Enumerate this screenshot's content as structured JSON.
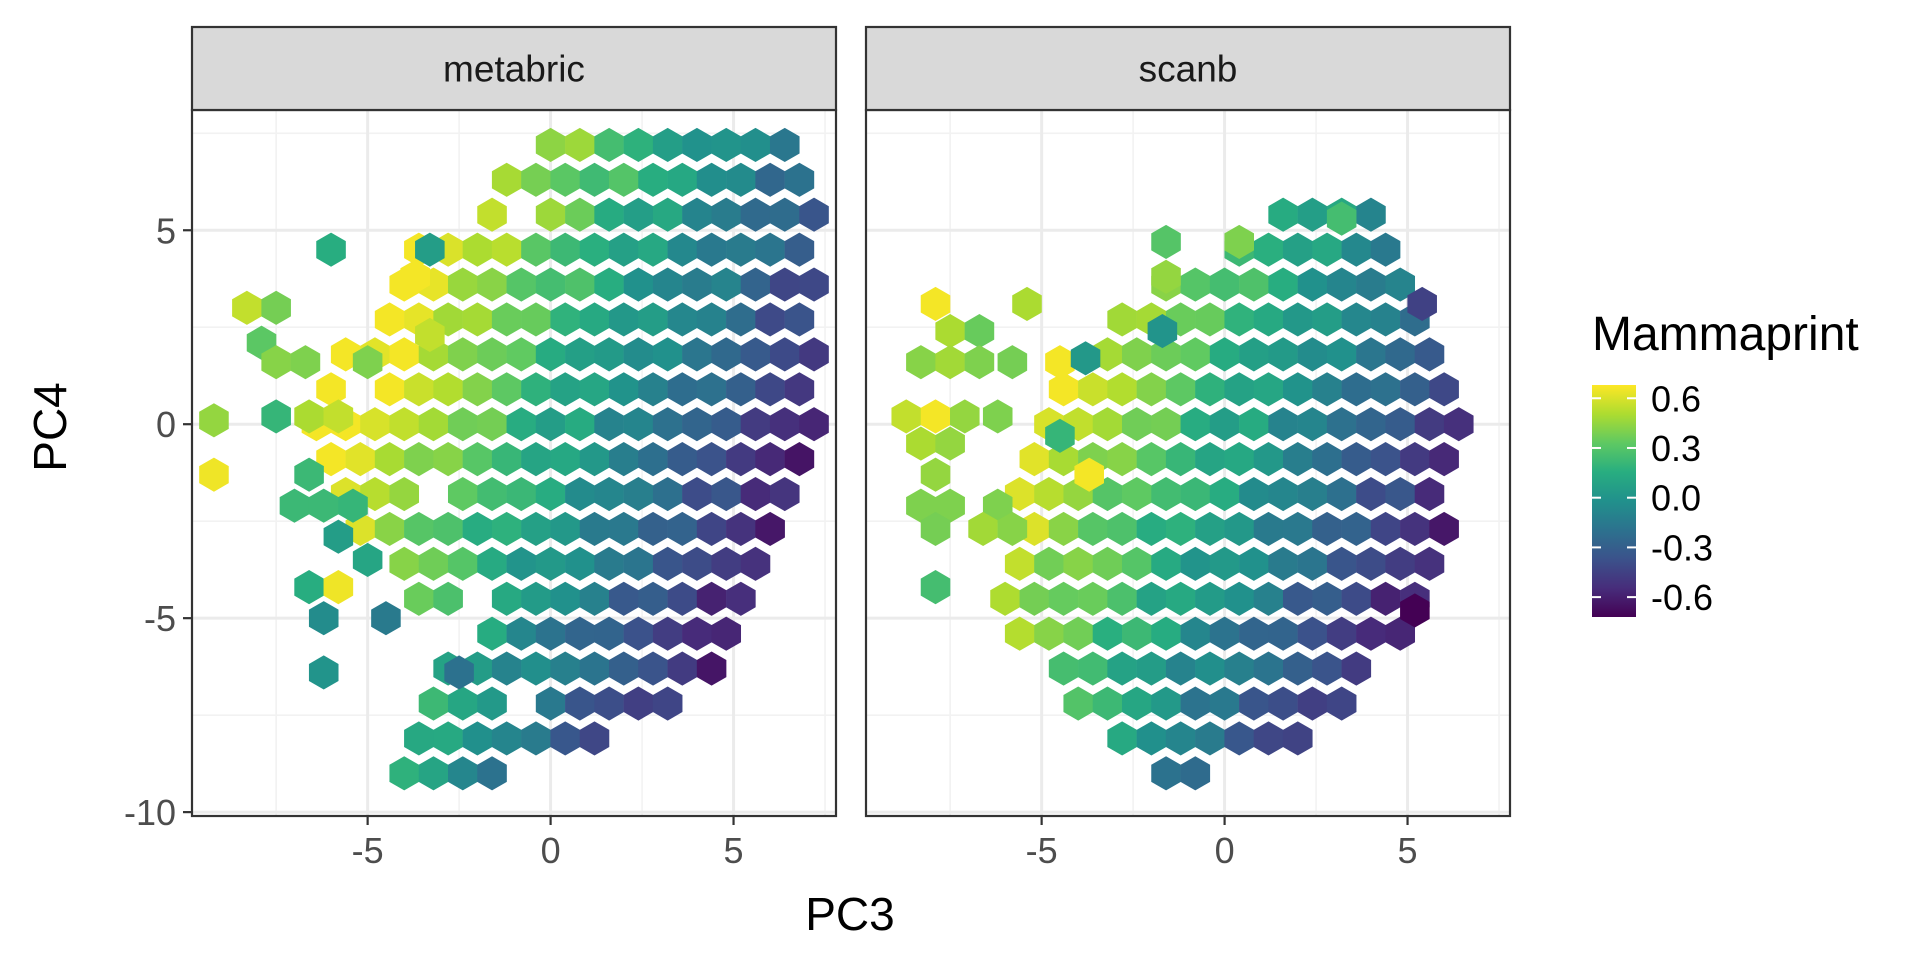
{
  "chart_data": {
    "type": "hexbin",
    "xlabel": "PC3",
    "ylabel": "PC4",
    "xlim": [
      -9.8,
      7.8
    ],
    "ylim": [
      -10.1,
      8.1
    ],
    "x_ticks": [
      -5,
      0,
      5
    ],
    "y_ticks": [
      5,
      0,
      -5,
      -10
    ],
    "x_tick_labels": [
      "-5",
      "0",
      "5"
    ],
    "y_tick_labels": [
      "5",
      "0",
      "-5",
      "-10"
    ],
    "grid": true,
    "legend": {
      "title": "Mammaprint",
      "position": "right",
      "colormap": "viridis",
      "min": -0.72,
      "max": 0.68,
      "ticks": [
        0.6,
        0.3,
        0.0,
        -0.3,
        -0.6
      ],
      "tick_labels": [
        "0.6",
        "0.3",
        "0.0",
        "-0.3",
        "-0.6"
      ]
    },
    "hex_bins": {
      "width_x": 0.8,
      "row_step_y": 0.9
    },
    "panels": [
      {
        "label": "metabric",
        "outline": [
          [
            -4.2,
            -9.8
          ],
          [
            -2.6,
            -9.8
          ],
          [
            -0.4,
            -8.7
          ],
          [
            2.8,
            -7.8
          ],
          [
            5.1,
            -5.7
          ],
          [
            6.6,
            -3.1
          ],
          [
            7.3,
            0.5
          ],
          [
            7.4,
            5.8
          ],
          [
            6.0,
            7.9
          ],
          [
            1.6,
            7.9
          ],
          [
            -0.6,
            7.0
          ],
          [
            -3.4,
            5.2
          ],
          [
            -4.8,
            2.8
          ],
          [
            -6.1,
            2.2
          ],
          [
            -6.9,
            0.6
          ],
          [
            -6.5,
            -1.0
          ],
          [
            -5.3,
            -3.0
          ],
          [
            -4.3,
            -4.1
          ],
          [
            -3.3,
            -5.0
          ],
          [
            -2.0,
            -5.5
          ],
          [
            -3.0,
            -6.4
          ],
          [
            -3.6,
            -7.5
          ],
          [
            -4.7,
            -8.6
          ]
        ],
        "holes": [
          [
            -1.1,
            -7.3
          ],
          [
            -3.5,
            -2.0
          ],
          [
            -2.4,
            5.0
          ],
          [
            -1.0,
            5.0
          ],
          [
            -5.0,
            1.0
          ],
          [
            -2.0,
            -4.3
          ]
        ],
        "extra_bins": [
          {
            "x": -6.0,
            "y": 4.5,
            "v": 0.15
          },
          {
            "x": -8.3,
            "y": 3.0,
            "v": 0.55
          },
          {
            "x": -7.5,
            "y": 3.0,
            "v": 0.38
          },
          {
            "x": -7.9,
            "y": 2.1,
            "v": 0.32
          },
          {
            "x": -7.5,
            "y": 1.6,
            "v": 0.42
          },
          {
            "x": -6.7,
            "y": 1.6,
            "v": 0.4
          },
          {
            "x": -7.5,
            "y": 0.2,
            "v": 0.2
          },
          {
            "x": -6.6,
            "y": 0.2,
            "v": 0.5
          },
          {
            "x": -5.8,
            "y": 0.2,
            "v": 0.55
          },
          {
            "x": -9.2,
            "y": 0.1,
            "v": 0.45
          },
          {
            "x": -9.2,
            "y": -1.3,
            "v": 0.65
          },
          {
            "x": -6.6,
            "y": -1.3,
            "v": 0.22
          },
          {
            "x": -7.0,
            "y": -2.1,
            "v": 0.22
          },
          {
            "x": -6.2,
            "y": -2.1,
            "v": 0.22
          },
          {
            "x": -5.4,
            "y": -2.1,
            "v": 0.2
          },
          {
            "x": -5.8,
            "y": -2.9,
            "v": 0.05
          },
          {
            "x": -5.0,
            "y": -3.5,
            "v": 0.1
          },
          {
            "x": -6.6,
            "y": -4.2,
            "v": 0.15
          },
          {
            "x": -5.8,
            "y": -4.2,
            "v": 0.65
          },
          {
            "x": -6.2,
            "y": -5.0,
            "v": -0.05
          },
          {
            "x": -4.5,
            "y": -5.0,
            "v": -0.15
          },
          {
            "x": -6.2,
            "y": -6.4,
            "v": 0.0
          },
          {
            "x": -3.7,
            "y": 3.8,
            "v": 0.66
          },
          {
            "x": -3.3,
            "y": 2.3,
            "v": 0.55
          },
          {
            "x": -3.3,
            "y": 4.5,
            "v": 0.05
          },
          {
            "x": -5.0,
            "y": 1.6,
            "v": 0.4
          },
          {
            "x": -2.5,
            "y": -6.4,
            "v": -0.2
          }
        ]
      },
      {
        "label": "scanb",
        "outline": [
          [
            -1.6,
            -9.4
          ],
          [
            0.6,
            -8.8
          ],
          [
            2.4,
            -8.3
          ],
          [
            3.6,
            -7.2
          ],
          [
            4.6,
            -5.9
          ],
          [
            5.8,
            -4.6
          ],
          [
            6.2,
            -1.5
          ],
          [
            6.7,
            0.6
          ],
          [
            6.1,
            2.5
          ],
          [
            5.4,
            3.4
          ],
          [
            4.9,
            4.7
          ],
          [
            4.3,
            5.5
          ],
          [
            1.4,
            5.5
          ],
          [
            0.0,
            4.4
          ],
          [
            -0.9,
            4.0
          ],
          [
            -1.8,
            3.8
          ],
          [
            -2.8,
            2.8
          ],
          [
            -3.6,
            1.9
          ],
          [
            -4.9,
            1.0
          ],
          [
            -5.6,
            -0.8
          ],
          [
            -5.8,
            -2.6
          ],
          [
            -6.3,
            -4.4
          ],
          [
            -6.1,
            -5.8
          ],
          [
            -4.8,
            -6.8
          ],
          [
            -3.5,
            -8.1
          ]
        ],
        "holes": [
          [
            -5.2,
            -6.2
          ],
          [
            -5.6,
            2.0
          ],
          [
            -7.0,
            -1.3
          ],
          [
            -6.7,
            -2.9
          ]
        ],
        "extra_bins": [
          {
            "x": -7.9,
            "y": 3.1,
            "v": 0.66
          },
          {
            "x": -7.5,
            "y": 2.4,
            "v": 0.5
          },
          {
            "x": -6.7,
            "y": 2.4,
            "v": 0.35
          },
          {
            "x": -5.4,
            "y": 3.1,
            "v": 0.5
          },
          {
            "x": -8.3,
            "y": 1.6,
            "v": 0.42
          },
          {
            "x": -7.5,
            "y": 1.6,
            "v": 0.48
          },
          {
            "x": -6.7,
            "y": 1.6,
            "v": 0.4
          },
          {
            "x": -5.8,
            "y": 1.6,
            "v": 0.38
          },
          {
            "x": -4.5,
            "y": 1.6,
            "v": 0.66
          },
          {
            "x": -3.8,
            "y": 1.7,
            "v": 0.02
          },
          {
            "x": -8.7,
            "y": 0.2,
            "v": 0.55
          },
          {
            "x": -7.9,
            "y": 0.2,
            "v": 0.66
          },
          {
            "x": -7.1,
            "y": 0.2,
            "v": 0.45
          },
          {
            "x": -6.2,
            "y": 0.2,
            "v": 0.4
          },
          {
            "x": -8.3,
            "y": -0.5,
            "v": 0.5
          },
          {
            "x": -7.5,
            "y": -0.5,
            "v": 0.45
          },
          {
            "x": -7.9,
            "y": -1.3,
            "v": 0.45
          },
          {
            "x": -8.3,
            "y": -2.1,
            "v": 0.4
          },
          {
            "x": -7.5,
            "y": -2.1,
            "v": 0.4
          },
          {
            "x": -7.9,
            "y": -2.7,
            "v": 0.38
          },
          {
            "x": -6.2,
            "y": -2.1,
            "v": 0.4
          },
          {
            "x": -6.6,
            "y": -2.7,
            "v": 0.48
          },
          {
            "x": -5.8,
            "y": -2.7,
            "v": 0.42
          },
          {
            "x": -7.9,
            "y": -4.2,
            "v": 0.25
          },
          {
            "x": -3.7,
            "y": -1.3,
            "v": 0.66
          },
          {
            "x": -4.5,
            "y": -0.3,
            "v": 0.2
          },
          {
            "x": -1.6,
            "y": 4.7,
            "v": 0.3
          },
          {
            "x": 0.4,
            "y": 4.7,
            "v": 0.4
          },
          {
            "x": -1.6,
            "y": 3.8,
            "v": 0.45
          },
          {
            "x": -1.7,
            "y": 2.4,
            "v": 0.0
          },
          {
            "x": 3.2,
            "y": 5.3,
            "v": 0.25
          },
          {
            "x": 5.4,
            "y": 3.1,
            "v": -0.45
          },
          {
            "x": 5.2,
            "y": -4.8,
            "v": -0.72
          }
        ]
      }
    ]
  }
}
